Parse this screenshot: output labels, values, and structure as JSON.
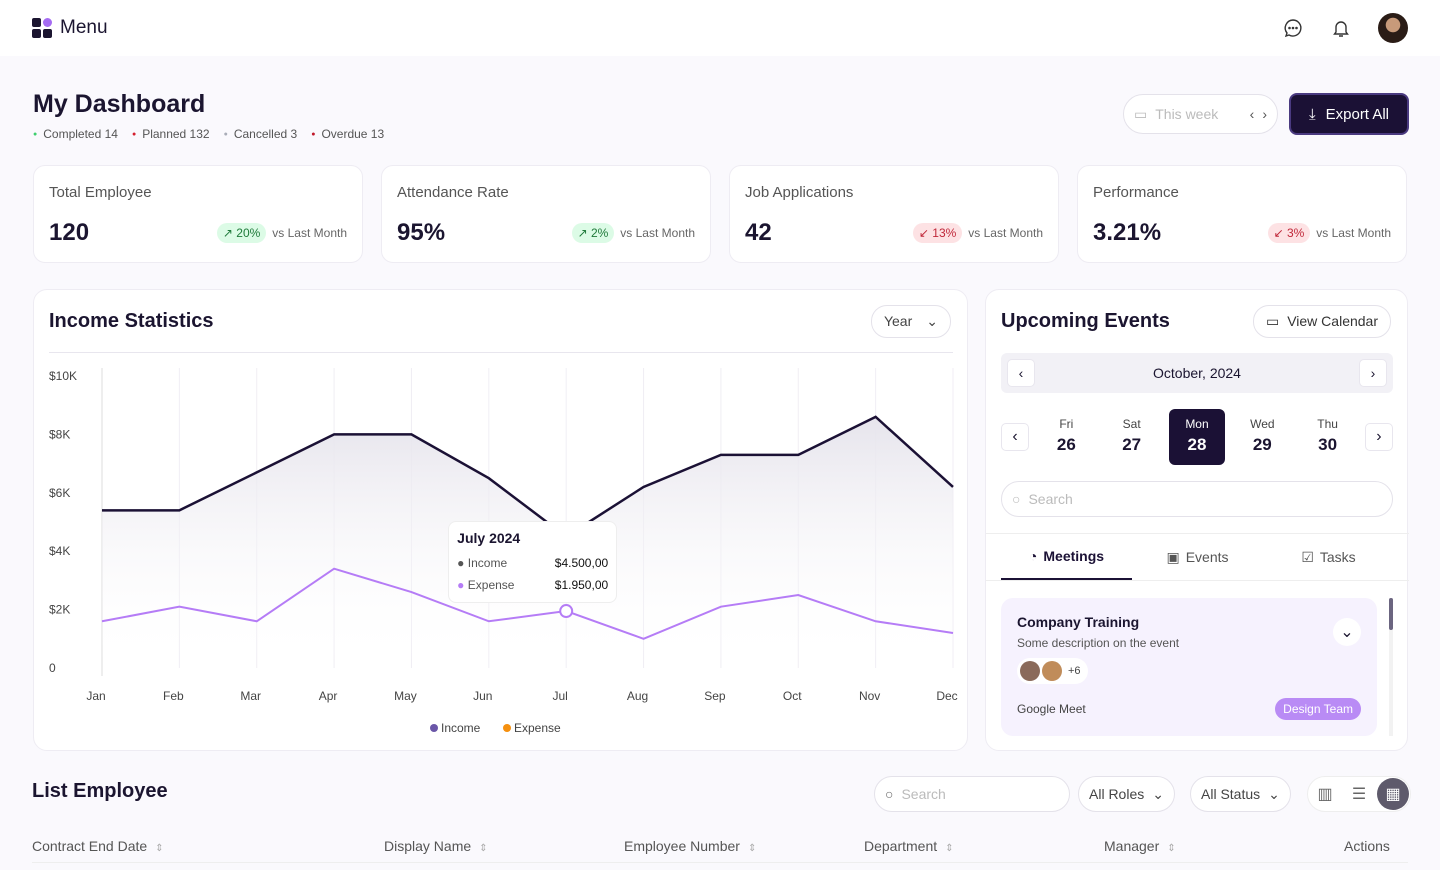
{
  "topbar": {
    "title": "Menu"
  },
  "header": {
    "title": "My Dashboard",
    "stats": [
      {
        "label": "Completed 14",
        "color": "#3ecf6e"
      },
      {
        "label": "Planned 132",
        "color": "#d4202f"
      },
      {
        "label": "Cancelled 3",
        "color": "#a9adb8"
      },
      {
        "label": "Overdue 13",
        "color": "#c0182a"
      }
    ],
    "week": "This week",
    "export": "Export All"
  },
  "cards": [
    {
      "title": "Total Employee",
      "value": "120",
      "change": "↗ 20%",
      "dir": "up",
      "vs": "vs Last Month"
    },
    {
      "title": "Attendance Rate",
      "value": "95%",
      "change": "↗ 2%",
      "dir": "up",
      "vs": "vs Last Month"
    },
    {
      "title": "Job Applications",
      "value": "42",
      "change": "↙ 13%",
      "dir": "dn",
      "vs": "vs Last Month"
    },
    {
      "title": "Performance",
      "value": "3.21%",
      "change": "↙ 3%",
      "dir": "dn",
      "vs": "vs Last Month"
    }
  ],
  "income": {
    "title": "Income Statistics",
    "period": "Year",
    "tooltip": {
      "title": "July 2024",
      "income_label": "Income",
      "income_value": "$4.500,00",
      "expense_label": "Expense",
      "expense_value": "$1.950,00"
    }
  },
  "chart_data": {
    "type": "line",
    "title": "Income Statistics",
    "categories": [
      "Jan",
      "Feb",
      "Mar",
      "Apr",
      "May",
      "Jun",
      "Jul",
      "Aug",
      "Sep",
      "Oct",
      "Nov",
      "Dec"
    ],
    "yticks": [
      "$10K",
      "$8K",
      "$6K",
      "$4K",
      "$2K",
      "0"
    ],
    "ylim": [
      0,
      10000
    ],
    "series": [
      {
        "name": "Income",
        "color": "#1b1135",
        "values": [
          5400,
          5400,
          6700,
          8000,
          8000,
          6500,
          4500,
          6200,
          7300,
          7300,
          8600,
          6200
        ]
      },
      {
        "name": "Expense",
        "color": "#b57cf6",
        "values": [
          1600,
          2100,
          1600,
          3400,
          2600,
          1600,
          1950,
          1000,
          2100,
          2500,
          1600,
          1200
        ]
      }
    ],
    "legend": [
      {
        "label": "Income",
        "color": "#6a56a8"
      },
      {
        "label": "Expense",
        "color": "#f5900f"
      }
    ],
    "highlight_index": 6
  },
  "events": {
    "title": "Upcoming Events",
    "view_calendar": "View Calendar",
    "month": "October, 2024",
    "days": [
      {
        "dow": "Fri",
        "num": "26"
      },
      {
        "dow": "Sat",
        "num": "27"
      },
      {
        "dow": "Mon",
        "num": "28",
        "sel": true
      },
      {
        "dow": "Wed",
        "num": "29"
      },
      {
        "dow": "Thu",
        "num": "30"
      }
    ],
    "search_placeholder": "Search",
    "tabs": [
      "Meetings",
      "Events",
      "Tasks"
    ],
    "event": {
      "title": "Company Training",
      "desc": "Some description on the event",
      "more": "+6",
      "location": "Google Meet",
      "tag": "Design Team"
    }
  },
  "employees": {
    "title": "List Employee",
    "search_placeholder": "Search",
    "roles": "All Roles",
    "status": "All Status",
    "columns": [
      "Contract End Date",
      "Display Name",
      "Employee Number",
      "Department",
      "Manager",
      "Actions"
    ]
  }
}
